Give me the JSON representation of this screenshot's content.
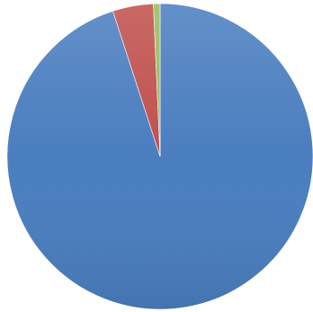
{
  "chart_data": {
    "type": "pie",
    "title": "",
    "slices": [
      {
        "label": "",
        "value": 95.0,
        "color": "#4a7ebf"
      },
      {
        "label": "",
        "value": 4.3,
        "color": "#c0504d"
      },
      {
        "label": "",
        "value": 0.7,
        "color": "#9bbb59"
      }
    ],
    "start_angle_deg": 0,
    "direction": "clockwise",
    "legend": "none",
    "data_labels": false
  }
}
